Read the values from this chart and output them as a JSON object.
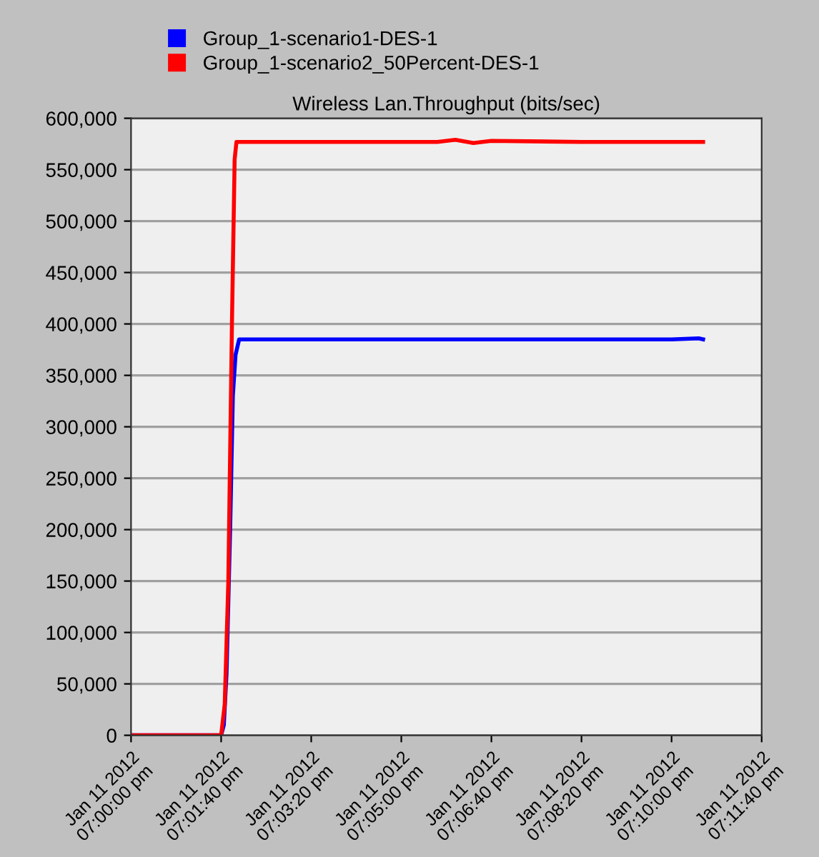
{
  "chart_data": {
    "type": "line",
    "title": "Wireless Lan.Throughput (bits/sec)",
    "xlim": [
      "2012-01-11T19:00:00",
      "2012-01-11T19:11:40"
    ],
    "xticks": [
      {
        "value": "2012-01-11T19:00:00",
        "label": "Jan 11 2012\n07:00:00 pm"
      },
      {
        "value": "2012-01-11T19:01:40",
        "label": "Jan 11 2012\n07:01:40 pm"
      },
      {
        "value": "2012-01-11T19:03:20",
        "label": "Jan 11 2012\n07:03:20 pm"
      },
      {
        "value": "2012-01-11T19:05:00",
        "label": "Jan 11 2012\n07:05:00 pm"
      },
      {
        "value": "2012-01-11T19:06:40",
        "label": "Jan 11 2012\n07:06:40 pm"
      },
      {
        "value": "2012-01-11T19:08:20",
        "label": "Jan 11 2012\n07:08:20 pm"
      },
      {
        "value": "2012-01-11T19:10:00",
        "label": "Jan 11 2012\n07:10:00 pm"
      },
      {
        "value": "2012-01-11T19:11:40",
        "label": "Jan 11 2012\n07:11:40 pm"
      }
    ],
    "ylim": [
      0,
      600000
    ],
    "yticks": [
      0,
      {
        "value": 50000,
        "label": "50,000"
      },
      {
        "value": 100000,
        "label": "100,000"
      },
      {
        "value": 150000,
        "label": "150,000"
      },
      {
        "value": 200000,
        "label": "200,000"
      },
      {
        "value": 250000,
        "label": "250,000"
      },
      {
        "value": 300000,
        "label": "300,000"
      },
      {
        "value": 350000,
        "label": "350,000"
      },
      {
        "value": 400000,
        "label": "400,000"
      },
      {
        "value": 450000,
        "label": "450,000"
      },
      {
        "value": 500000,
        "label": "500,000"
      },
      {
        "value": 550000,
        "label": "550,000"
      },
      {
        "value": 600000,
        "label": "600,000"
      }
    ],
    "grid": "y",
    "legend": "top left",
    "marker": "none",
    "line_style": "solid",
    "series": [
      {
        "name": "Group_1-scenario1-DES-1",
        "color": "#0000ff",
        "x": [
          "2012-01-11T19:00:00",
          "2012-01-11T19:01:40",
          "2012-01-11T19:01:43",
          "2012-01-11T19:01:46",
          "2012-01-11T19:01:50",
          "2012-01-11T19:01:53",
          "2012-01-11T19:01:56",
          "2012-01-11T19:02:00",
          "2012-01-11T19:03:20",
          "2012-01-11T19:05:00",
          "2012-01-11T19:06:40",
          "2012-01-11T19:08:20",
          "2012-01-11T19:10:00",
          "2012-01-11T19:10:30",
          "2012-01-11T19:10:35"
        ],
        "values": [
          0,
          0,
          10000,
          60000,
          200000,
          330000,
          370000,
          385000,
          385000,
          385000,
          385000,
          385000,
          385000,
          386000,
          385000
        ]
      },
      {
        "name": "Group_1-scenario2_50Percent-DES-1",
        "color": "#ff0000",
        "x": [
          "2012-01-11T19:00:00",
          "2012-01-11T19:01:40",
          "2012-01-11T19:01:44",
          "2012-01-11T19:01:48",
          "2012-01-11T19:01:52",
          "2012-01-11T19:01:55",
          "2012-01-11T19:01:57",
          "2012-01-11T19:03:20",
          "2012-01-11T19:05:00",
          "2012-01-11T19:05:40",
          "2012-01-11T19:06:00",
          "2012-01-11T19:06:20",
          "2012-01-11T19:06:40",
          "2012-01-11T19:08:20",
          "2012-01-11T19:10:00",
          "2012-01-11T19:10:35"
        ],
        "values": [
          0,
          0,
          30000,
          150000,
          400000,
          560000,
          577000,
          577000,
          577000,
          577000,
          579000,
          576000,
          578000,
          577000,
          577000,
          577000
        ]
      }
    ]
  }
}
